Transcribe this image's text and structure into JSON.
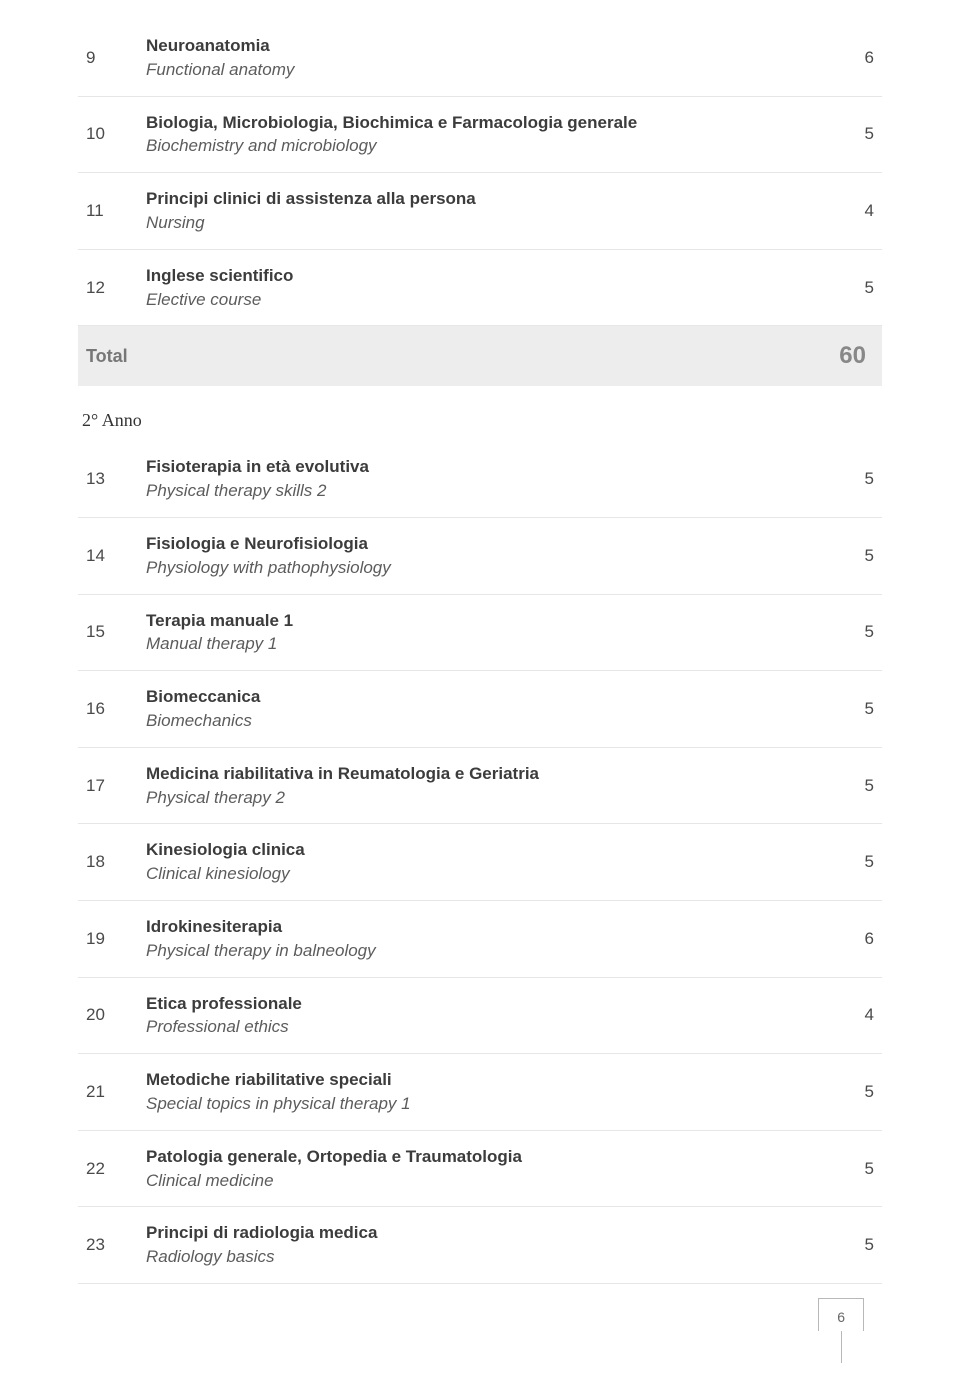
{
  "text_color": "#48494a",
  "border_color": "#e6e6e6",
  "total_bg": "#ededed",
  "sections": [
    {
      "rows": [
        {
          "idx": "9",
          "title": "Neuroanatomia",
          "sub": "Functional anatomy",
          "credits": "6"
        },
        {
          "idx": "10",
          "title": "Biologia, Microbiologia, Biochimica e Farmacologia generale",
          "sub": "Biochemistry and microbiology",
          "credits": "5"
        },
        {
          "idx": "11",
          "title": "Principi clinici di assistenza alla persona",
          "sub": "Nursing",
          "credits": "4"
        },
        {
          "idx": "12",
          "title": "Inglese scientifico",
          "sub": "Elective course",
          "credits": "5"
        }
      ],
      "total_label": "Total",
      "total_value": "60"
    },
    {
      "heading": "2° Anno",
      "rows": [
        {
          "idx": "13",
          "title": "Fisioterapia in età evolutiva",
          "sub": "Physical therapy skills 2",
          "credits": "5"
        },
        {
          "idx": "14",
          "title": "Fisiologia e Neurofisiologia",
          "sub": "Physiology with pathophysiology",
          "credits": "5"
        },
        {
          "idx": "15",
          "title": "Terapia manuale 1",
          "sub": "Manual therapy 1",
          "credits": "5"
        },
        {
          "idx": "16",
          "title": "Biomeccanica",
          "sub": "Biomechanics",
          "credits": "5"
        },
        {
          "idx": "17",
          "title": "Medicina riabilitativa in Reumatologia e Geriatria",
          "sub": "Physical therapy 2",
          "credits": "5"
        },
        {
          "idx": "18",
          "title": "Kinesiologia clinica",
          "sub": "Clinical kinesiology",
          "credits": "5"
        },
        {
          "idx": "19",
          "title": "Idrokinesiterapia",
          "sub": "Physical therapy in balneology",
          "credits": "6"
        },
        {
          "idx": "20",
          "title": "Etica professionale",
          "sub": "Professional ethics",
          "credits": "4"
        },
        {
          "idx": "21",
          "title": "Metodiche riabilitative speciali",
          "sub": "Special topics in physical therapy 1",
          "credits": "5"
        },
        {
          "idx": "22",
          "title": "Patologia generale, Ortopedia e Traumatologia",
          "sub": "Clinical medicine",
          "credits": "5"
        },
        {
          "idx": "23",
          "title": "Principi di radiologia medica",
          "sub": "Radiology basics",
          "credits": "5"
        }
      ]
    }
  ],
  "page_number": "6"
}
